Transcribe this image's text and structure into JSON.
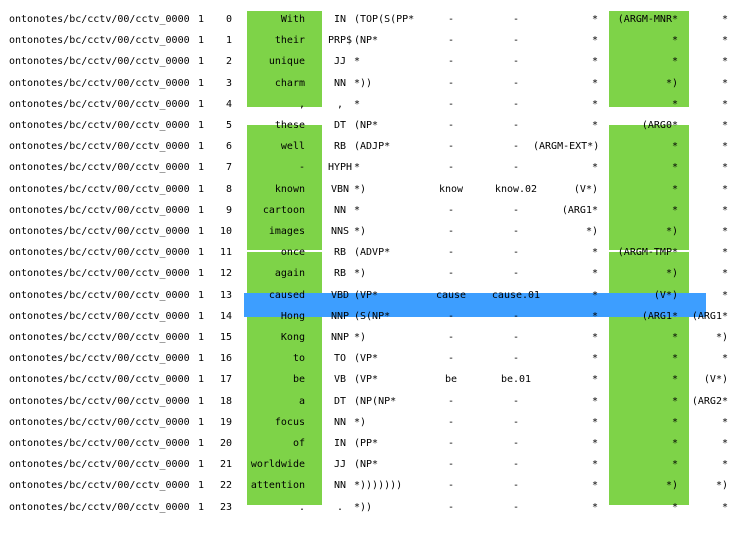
{
  "colors": {
    "green": "#7ed348",
    "blue": "#3d9eff"
  },
  "rows": [
    {
      "doc": "ontonotes/bc/cctv/00/cctv_0000",
      "part": "1",
      "idx": "0",
      "word": "With",
      "pos": "IN",
      "parse": "(TOP(S(PP*",
      "lemma": "-",
      "frame": "-",
      "a1": "*",
      "a2": "(ARGM-MNR*",
      "a3": "*"
    },
    {
      "doc": "ontonotes/bc/cctv/00/cctv_0000",
      "part": "1",
      "idx": "1",
      "word": "their",
      "pos": "PRP$",
      "parse": "(NP*",
      "lemma": "-",
      "frame": "-",
      "a1": "*",
      "a2": "*",
      "a3": "*"
    },
    {
      "doc": "ontonotes/bc/cctv/00/cctv_0000",
      "part": "1",
      "idx": "2",
      "word": "unique",
      "pos": "JJ",
      "parse": "*",
      "lemma": "-",
      "frame": "-",
      "a1": "*",
      "a2": "*",
      "a3": "*"
    },
    {
      "doc": "ontonotes/bc/cctv/00/cctv_0000",
      "part": "1",
      "idx": "3",
      "word": "charm",
      "pos": "NN",
      "parse": "*))",
      "lemma": "-",
      "frame": "-",
      "a1": "*",
      "a2": "*)",
      "a3": "*"
    },
    {
      "doc": "ontonotes/bc/cctv/00/cctv_0000",
      "part": "1",
      "idx": "4",
      "word": ",",
      "pos": ",",
      "parse": "*",
      "lemma": "-",
      "frame": "-",
      "a1": "*",
      "a2": "*",
      "a3": "*"
    },
    {
      "doc": "ontonotes/bc/cctv/00/cctv_0000",
      "part": "1",
      "idx": "5",
      "word": "these",
      "pos": "DT",
      "parse": "(NP*",
      "lemma": "-",
      "frame": "-",
      "a1": "*",
      "a2": "(ARG0*",
      "a3": "*"
    },
    {
      "doc": "ontonotes/bc/cctv/00/cctv_0000",
      "part": "1",
      "idx": "6",
      "word": "well",
      "pos": "RB",
      "parse": "(ADJP*",
      "lemma": "-",
      "frame": "-",
      "a1": "(ARGM-EXT*)",
      "a2": "*",
      "a3": "*"
    },
    {
      "doc": "ontonotes/bc/cctv/00/cctv_0000",
      "part": "1",
      "idx": "7",
      "word": "-",
      "pos": "HYPH",
      "parse": "*",
      "lemma": "-",
      "frame": "-",
      "a1": "*",
      "a2": "*",
      "a3": "*"
    },
    {
      "doc": "ontonotes/bc/cctv/00/cctv_0000",
      "part": "1",
      "idx": "8",
      "word": "known",
      "pos": "VBN",
      "parse": "*)",
      "lemma": "know",
      "frame": "know.02",
      "a1": "(V*)",
      "a2": "*",
      "a3": "*"
    },
    {
      "doc": "ontonotes/bc/cctv/00/cctv_0000",
      "part": "1",
      "idx": "9",
      "word": "cartoon",
      "pos": "NN",
      "parse": "*",
      "lemma": "-",
      "frame": "-",
      "a1": "(ARG1*",
      "a2": "*",
      "a3": "*"
    },
    {
      "doc": "ontonotes/bc/cctv/00/cctv_0000",
      "part": "1",
      "idx": "10",
      "word": "images",
      "pos": "NNS",
      "parse": "*)",
      "lemma": "-",
      "frame": "-",
      "a1": "*)",
      "a2": "*)",
      "a3": "*"
    },
    {
      "doc": "ontonotes/bc/cctv/00/cctv_0000",
      "part": "1",
      "idx": "11",
      "word": "once",
      "pos": "RB",
      "parse": "(ADVP*",
      "lemma": "-",
      "frame": "-",
      "a1": "*",
      "a2": "(ARGM-TMP*",
      "a3": "*"
    },
    {
      "doc": "ontonotes/bc/cctv/00/cctv_0000",
      "part": "1",
      "idx": "12",
      "word": "again",
      "pos": "RB",
      "parse": "*)",
      "lemma": "-",
      "frame": "-",
      "a1": "*",
      "a2": "*)",
      "a3": "*"
    },
    {
      "doc": "ontonotes/bc/cctv/00/cctv_0000",
      "part": "1",
      "idx": "13",
      "word": "caused",
      "pos": "VBD",
      "parse": "(VP*",
      "lemma": "cause",
      "frame": "cause.01",
      "a1": "*",
      "a2": "(V*)",
      "a3": "*"
    },
    {
      "doc": "ontonotes/bc/cctv/00/cctv_0000",
      "part": "1",
      "idx": "14",
      "word": "Hong",
      "pos": "NNP",
      "parse": "(S(NP*",
      "lemma": "-",
      "frame": "-",
      "a1": "*",
      "a2": "(ARG1*",
      "a3": "(ARG1*"
    },
    {
      "doc": "ontonotes/bc/cctv/00/cctv_0000",
      "part": "1",
      "idx": "15",
      "word": "Kong",
      "pos": "NNP",
      "parse": "*)",
      "lemma": "-",
      "frame": "-",
      "a1": "*",
      "a2": "*",
      "a3": "*)"
    },
    {
      "doc": "ontonotes/bc/cctv/00/cctv_0000",
      "part": "1",
      "idx": "16",
      "word": "to",
      "pos": "TO",
      "parse": "(VP*",
      "lemma": "-",
      "frame": "-",
      "a1": "*",
      "a2": "*",
      "a3": "*"
    },
    {
      "doc": "ontonotes/bc/cctv/00/cctv_0000",
      "part": "1",
      "idx": "17",
      "word": "be",
      "pos": "VB",
      "parse": "(VP*",
      "lemma": "be",
      "frame": "be.01",
      "a1": "*",
      "a2": "*",
      "a3": "(V*)"
    },
    {
      "doc": "ontonotes/bc/cctv/00/cctv_0000",
      "part": "1",
      "idx": "18",
      "word": "a",
      "pos": "DT",
      "parse": "(NP(NP*",
      "lemma": "-",
      "frame": "-",
      "a1": "*",
      "a2": "*",
      "a3": "(ARG2*"
    },
    {
      "doc": "ontonotes/bc/cctv/00/cctv_0000",
      "part": "1",
      "idx": "19",
      "word": "focus",
      "pos": "NN",
      "parse": "*)",
      "lemma": "-",
      "frame": "-",
      "a1": "*",
      "a2": "*",
      "a3": "*"
    },
    {
      "doc": "ontonotes/bc/cctv/00/cctv_0000",
      "part": "1",
      "idx": "20",
      "word": "of",
      "pos": "IN",
      "parse": "(PP*",
      "lemma": "-",
      "frame": "-",
      "a1": "*",
      "a2": "*",
      "a3": "*"
    },
    {
      "doc": "ontonotes/bc/cctv/00/cctv_0000",
      "part": "1",
      "idx": "21",
      "word": "worldwide",
      "pos": "JJ",
      "parse": "(NP*",
      "lemma": "-",
      "frame": "-",
      "a1": "*",
      "a2": "*",
      "a3": "*"
    },
    {
      "doc": "ontonotes/bc/cctv/00/cctv_0000",
      "part": "1",
      "idx": "22",
      "word": "attention",
      "pos": "NN",
      "parse": "*)))))))",
      "lemma": "-",
      "frame": "-",
      "a1": "*",
      "a2": "*)",
      "a3": "*)"
    },
    {
      "doc": "ontonotes/bc/cctv/00/cctv_0000",
      "part": "1",
      "idx": "23",
      "word": ".",
      "pos": ".",
      "parse": "*))",
      "lemma": "-",
      "frame": "-",
      "a1": "*",
      "a2": "*",
      "a3": "*"
    }
  ]
}
